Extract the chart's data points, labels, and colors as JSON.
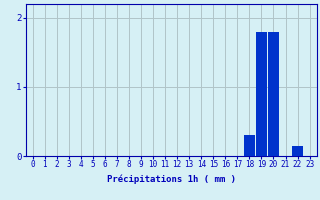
{
  "hours": [
    0,
    1,
    2,
    3,
    4,
    5,
    6,
    7,
    8,
    9,
    10,
    11,
    12,
    13,
    14,
    15,
    16,
    17,
    18,
    19,
    20,
    21,
    22,
    23
  ],
  "values": [
    0,
    0,
    0,
    0,
    0,
    0,
    0,
    0,
    0,
    0,
    0,
    0,
    0,
    0,
    0,
    0,
    0,
    0,
    0.3,
    1.8,
    1.8,
    0,
    0.15,
    0
  ],
  "bar_color": "#0033cc",
  "background_color": "#d6f0f5",
  "grid_color": "#b0c4c8",
  "axis_color": "#0000aa",
  "xlabel": "Précipitations 1h ( mm )",
  "ylim": [
    0,
    2.2
  ],
  "yticks": [
    0,
    1,
    2
  ],
  "xtick_labels": [
    "0",
    "1",
    "2",
    "3",
    "4",
    "5",
    "6",
    "7",
    "8",
    "9",
    "10",
    "11",
    "12",
    "13",
    "14",
    "15",
    "16",
    "17",
    "18",
    "19",
    "20",
    "21",
    "22",
    "23"
  ],
  "tick_color": "#0000bb",
  "label_fontsize": 6.5,
  "tick_fontsize": 5.5
}
